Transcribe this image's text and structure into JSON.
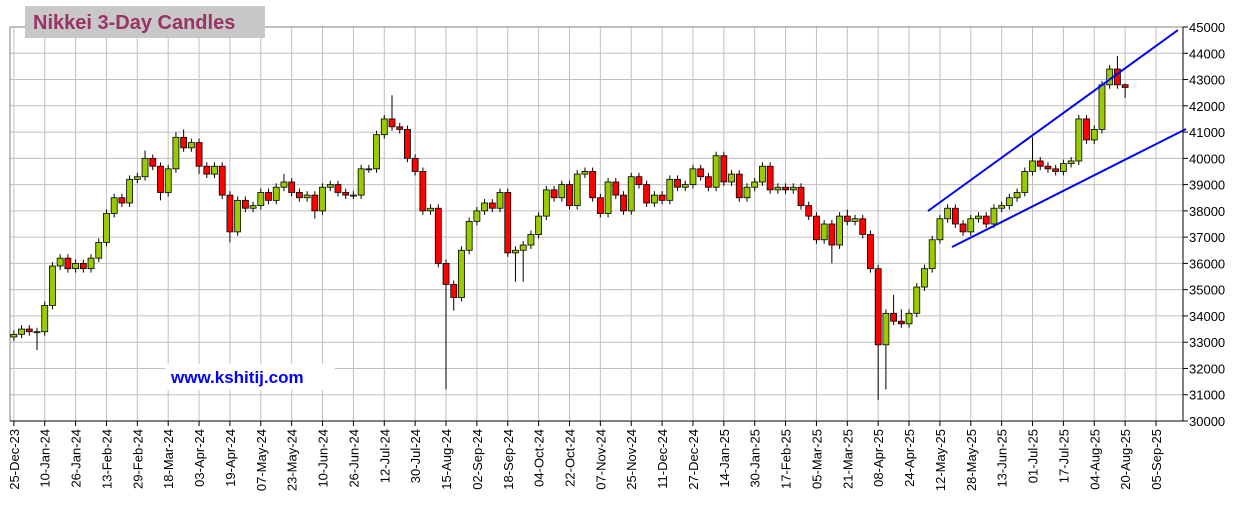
{
  "chart_data": {
    "type": "candlestick",
    "title": "Nikkei 3-Day Candles",
    "annotation": "www.kshitij.com",
    "up_color": "#99cc00",
    "down_color": "#ff0000",
    "grid": true,
    "xlim": [
      -0.5,
      151.5
    ],
    "xticks": [
      {
        "value": 0,
        "label": "25-Dec-23"
      },
      {
        "value": 4,
        "label": "10-Jan-24"
      },
      {
        "value": 8,
        "label": "26-Jan-24"
      },
      {
        "value": 12,
        "label": "13-Feb-24"
      },
      {
        "value": 16,
        "label": "29-Feb-24"
      },
      {
        "value": 20,
        "label": "18-Mar-24"
      },
      {
        "value": 24,
        "label": "03-Apr-24"
      },
      {
        "value": 28,
        "label": "19-Apr-24"
      },
      {
        "value": 32,
        "label": "07-May-24"
      },
      {
        "value": 36,
        "label": "23-May-24"
      },
      {
        "value": 40,
        "label": "10-Jun-24"
      },
      {
        "value": 44,
        "label": "26-Jun-24"
      },
      {
        "value": 48,
        "label": "12-Jul-24"
      },
      {
        "value": 52,
        "label": "30-Jul-24"
      },
      {
        "value": 56,
        "label": "15-Aug-24"
      },
      {
        "value": 60,
        "label": "02-Sep-24"
      },
      {
        "value": 64,
        "label": "18-Sep-24"
      },
      {
        "value": 68,
        "label": "04-Oct-24"
      },
      {
        "value": 72,
        "label": "22-Oct-24"
      },
      {
        "value": 76,
        "label": "07-Nov-24"
      },
      {
        "value": 80,
        "label": "25-Nov-24"
      },
      {
        "value": 84,
        "label": "11-Dec-24"
      },
      {
        "value": 88,
        "label": "27-Dec-24"
      },
      {
        "value": 92,
        "label": "14-Jan-25"
      },
      {
        "value": 96,
        "label": "30-Jan-25"
      },
      {
        "value": 100,
        "label": "17-Feb-25"
      },
      {
        "value": 104,
        "label": "05-Mar-25"
      },
      {
        "value": 108,
        "label": "21-Mar-25"
      },
      {
        "value": 112,
        "label": "08-Apr-25"
      },
      {
        "value": 116,
        "label": "24-Apr-25"
      },
      {
        "value": 120,
        "label": "12-May-25"
      },
      {
        "value": 124,
        "label": "28-May-25"
      },
      {
        "value": 128,
        "label": "13-Jun-25"
      },
      {
        "value": 132,
        "label": "01-Jul-25"
      },
      {
        "value": 136,
        "label": "17-Jul-25"
      },
      {
        "value": 140,
        "label": "04-Aug-25"
      },
      {
        "value": 144,
        "label": "20-Aug-25"
      },
      {
        "value": 148,
        "label": "05-Sep-25"
      }
    ],
    "ylim": [
      30000,
      45000
    ],
    "yticks": [
      30000,
      31000,
      32000,
      33000,
      34000,
      35000,
      36000,
      37000,
      38000,
      39000,
      40000,
      41000,
      42000,
      43000,
      44000,
      45000
    ],
    "open": [
      33200,
      33300,
      33500,
      33400,
      33400,
      34400,
      35900,
      36200,
      35800,
      36000,
      35800,
      36200,
      36800,
      37900,
      38500,
      38300,
      39200,
      39300,
      40000,
      39700,
      38700,
      39600,
      40800,
      40400,
      40600,
      39700,
      39400,
      39700,
      38600,
      37200,
      38400,
      38100,
      38200,
      38700,
      38400,
      38900,
      39100,
      38700,
      38500,
      38600,
      38000,
      38900,
      39000,
      38700,
      38600,
      38600,
      39600,
      39600,
      40900,
      41500,
      41200,
      41100,
      40000,
      39500,
      38000,
      38100,
      36000,
      35200,
      34700,
      36500,
      37600,
      38000,
      38300,
      38100,
      38700,
      36400,
      36500,
      36700,
      37100,
      37800,
      38800,
      38500,
      39000,
      38200,
      39400,
      39500,
      38500,
      37900,
      39100,
      38600,
      38000,
      39300,
      39000,
      38300,
      38600,
      38400,
      39200,
      38900,
      39000,
      39600,
      39300,
      38900,
      40100,
      39100,
      39400,
      38500,
      38900,
      39100,
      39700,
      38800,
      38900,
      38800,
      38900,
      38200,
      37800,
      36900,
      37500,
      36700,
      37800,
      37600,
      37700,
      37100,
      35800,
      32900,
      34100,
      33800,
      33700,
      34100,
      35100,
      35800,
      36900,
      37700,
      38100,
      37500,
      37200,
      37700,
      37800,
      37500,
      38100,
      38200,
      38500,
      38700,
      39500,
      39900,
      39700,
      39600,
      39500,
      39800,
      39900,
      41500,
      40700,
      41100,
      42800,
      43400,
      42800
    ],
    "high": [
      33450,
      33650,
      33650,
      33550,
      34550,
      36050,
      36350,
      36350,
      36150,
      36150,
      36350,
      36950,
      38050,
      38650,
      38650,
      39350,
      39450,
      40300,
      40150,
      39850,
      39750,
      41000,
      41100,
      40750,
      40750,
      39850,
      39850,
      39850,
      38750,
      38550,
      38550,
      38350,
      38850,
      38850,
      39050,
      39400,
      39250,
      38850,
      38750,
      38750,
      39050,
      39150,
      39150,
      38850,
      38750,
      39750,
      39750,
      41050,
      41650,
      42400,
      41350,
      41250,
      40150,
      39650,
      38250,
      38250,
      36150,
      35350,
      36650,
      37750,
      38150,
      38450,
      38450,
      38850,
      38850,
      36650,
      36850,
      37250,
      37950,
      38950,
      38950,
      39150,
      39150,
      39550,
      39650,
      39650,
      38650,
      39250,
      39250,
      38750,
      39450,
      39450,
      39150,
      38750,
      38750,
      39350,
      39350,
      39150,
      39750,
      39750,
      39450,
      40250,
      40250,
      39550,
      39550,
      39050,
      39250,
      39850,
      39850,
      39050,
      39050,
      39050,
      39050,
      38350,
      37950,
      37650,
      37650,
      37950,
      38050,
      37850,
      37850,
      37250,
      35950,
      34250,
      34800,
      34250,
      34250,
      35250,
      35950,
      37050,
      37850,
      38250,
      38250,
      37650,
      37850,
      37950,
      37950,
      38250,
      38350,
      38650,
      38850,
      39650,
      40800,
      40050,
      39850,
      39750,
      39950,
      40050,
      41650,
      41650,
      41250,
      42950,
      43550,
      43900,
      42850
    ],
    "low": [
      33050,
      33150,
      33250,
      32700,
      33250,
      34250,
      35750,
      35650,
      35650,
      35650,
      35650,
      36050,
      36650,
      37750,
      38150,
      38150,
      39050,
      39150,
      39550,
      38400,
      38550,
      39450,
      40250,
      40250,
      39400,
      39250,
      39250,
      38450,
      36800,
      37050,
      37950,
      37950,
      38050,
      38250,
      38250,
      38750,
      38550,
      38350,
      38350,
      37700,
      37850,
      38750,
      38550,
      38450,
      38450,
      38450,
      39450,
      39450,
      40750,
      41050,
      40950,
      39850,
      39350,
      37850,
      37850,
      35850,
      31200,
      34200,
      34550,
      36350,
      37450,
      37850,
      37950,
      37950,
      36250,
      35300,
      35300,
      36550,
      36950,
      37650,
      38350,
      38350,
      38050,
      38050,
      39250,
      38350,
      37750,
      37750,
      38450,
      37850,
      37850,
      38850,
      38150,
      38150,
      38250,
      38250,
      38750,
      38750,
      38850,
      39150,
      38750,
      38750,
      38950,
      38950,
      38350,
      38350,
      38750,
      38950,
      38650,
      38650,
      38650,
      38650,
      38050,
      37650,
      36750,
      36750,
      36000,
      36550,
      37450,
      37450,
      36950,
      35650,
      30800,
      31200,
      33650,
      33550,
      33550,
      33950,
      34950,
      35650,
      36750,
      37550,
      37350,
      37050,
      37050,
      37550,
      37350,
      37350,
      37950,
      38050,
      38350,
      38550,
      39350,
      39550,
      39450,
      39350,
      39350,
      39650,
      39750,
      40550,
      40550,
      40950,
      42650,
      42650,
      42300
    ],
    "close": [
      33300,
      33500,
      33400,
      33400,
      34400,
      35900,
      36200,
      35800,
      36000,
      35800,
      36200,
      36800,
      37900,
      38500,
      38300,
      39200,
      39300,
      40000,
      39700,
      38700,
      39600,
      40800,
      40400,
      40600,
      39700,
      39400,
      39700,
      38600,
      37200,
      38400,
      38100,
      38200,
      38700,
      38400,
      38900,
      39100,
      38700,
      38500,
      38600,
      38000,
      38900,
      39000,
      38700,
      38600,
      38600,
      39600,
      39600,
      40900,
      41500,
      41200,
      41100,
      40000,
      39500,
      38000,
      38100,
      36000,
      35200,
      34700,
      36500,
      37600,
      38000,
      38300,
      38100,
      38700,
      36400,
      36500,
      36700,
      37100,
      37800,
      38800,
      38500,
      39000,
      38200,
      39400,
      39500,
      38500,
      37900,
      39100,
      38600,
      38000,
      39300,
      39000,
      38300,
      38600,
      38400,
      39200,
      38900,
      39000,
      39600,
      39300,
      38900,
      40100,
      39100,
      39400,
      38500,
      38900,
      39100,
      39700,
      38800,
      38900,
      38800,
      38900,
      38200,
      37800,
      36900,
      37500,
      36700,
      37800,
      37600,
      37700,
      37100,
      35800,
      32900,
      34100,
      33800,
      33700,
      34100,
      35100,
      35800,
      36900,
      37700,
      38100,
      37500,
      37200,
      37700,
      37800,
      37500,
      38100,
      38200,
      38500,
      38700,
      39500,
      39900,
      39700,
      39600,
      39500,
      39800,
      39900,
      41500,
      40700,
      41100,
      42800,
      43400,
      42800,
      42700
    ]
  }
}
